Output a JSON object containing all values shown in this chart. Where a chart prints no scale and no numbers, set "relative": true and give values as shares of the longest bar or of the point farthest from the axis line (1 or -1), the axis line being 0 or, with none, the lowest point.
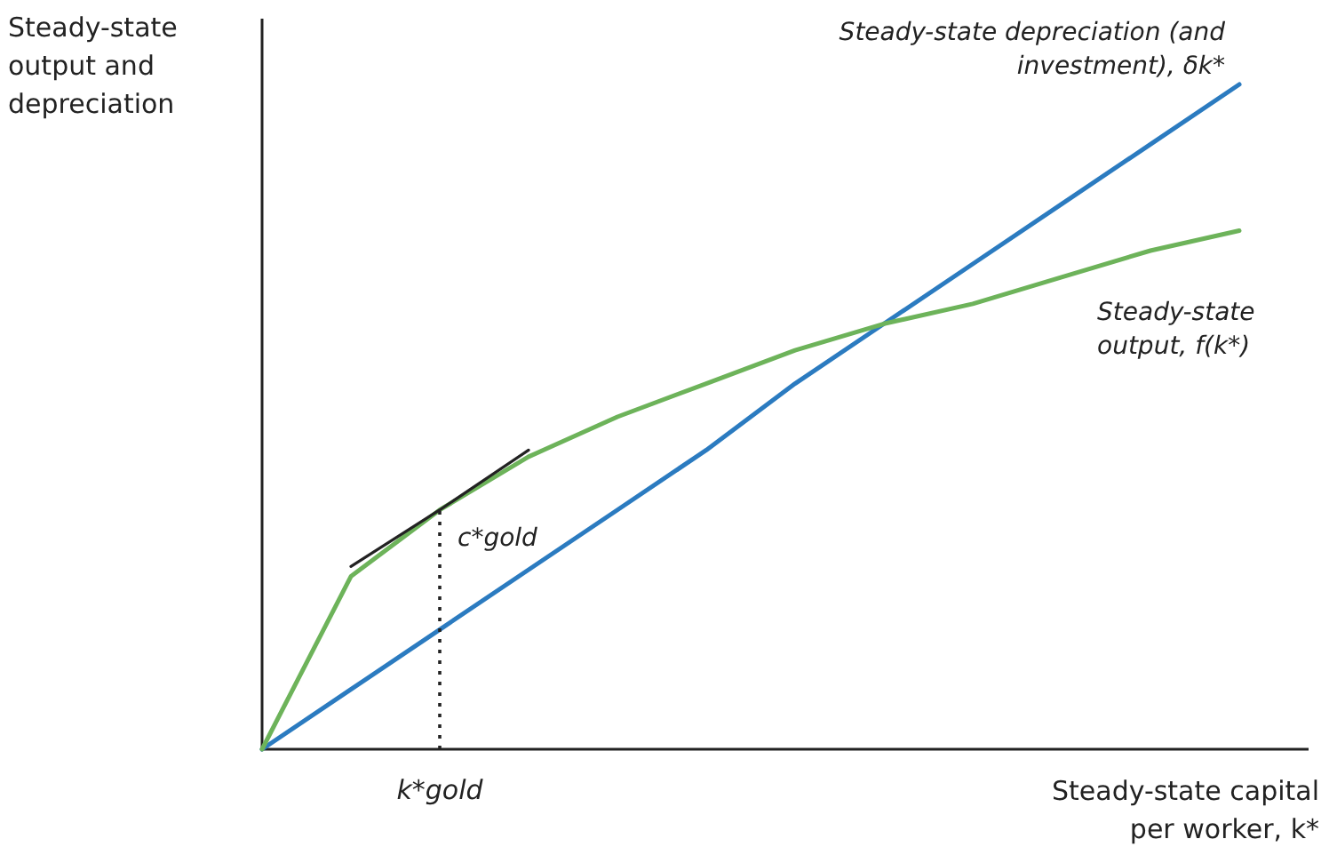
{
  "chart_data": {
    "type": "line",
    "relative": true,
    "xlabel": "Steady-state capital per worker, k*",
    "ylabel": "Steady-state output and depreciation",
    "categories": [
      null,
      null,
      null,
      null,
      null,
      null,
      null,
      null,
      null,
      null,
      null,
      null
    ],
    "series": [
      {
        "name": "Steady-state depreciation (and investment), δk*",
        "color": "#2b7bc0",
        "values": [
          0,
          0.09,
          0.18,
          0.27,
          0.36,
          0.45,
          0.55,
          0.64,
          0.73,
          0.82,
          0.91,
          1
        ]
      },
      {
        "name": "Steady-state output, f(k*)",
        "color": "#6db35a",
        "values": [
          0,
          0.26,
          0.36,
          0.44,
          0.5,
          0.55,
          0.6,
          0.64,
          0.67,
          0.71,
          0.75,
          0.78
        ]
      },
      {
        "color": "#222222",
        "values": [
          null,
          0.275,
          0.36,
          0.45,
          null,
          null,
          null,
          null,
          null,
          null,
          null,
          null
        ]
      }
    ],
    "annotations": [
      "c*gold",
      "k*gold"
    ]
  }
}
